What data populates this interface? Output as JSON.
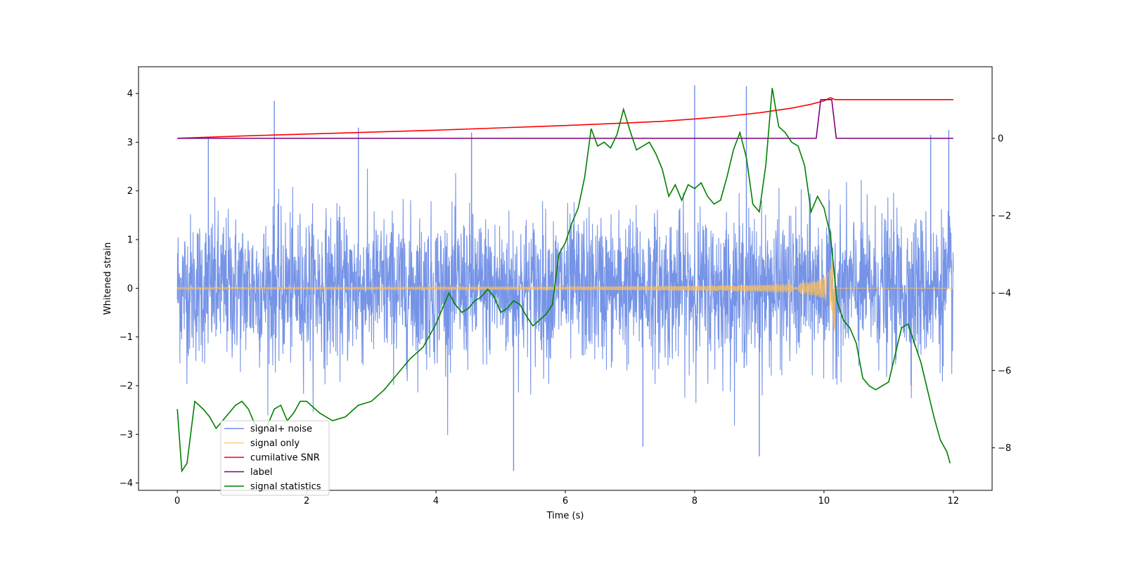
{
  "chart_data": {
    "type": "line",
    "title": "",
    "xlabel": "Time (s)",
    "ylabel": "Whitened strain",
    "xlim": [
      -0.6,
      12.6
    ],
    "ylim": [
      -4.15,
      4.55
    ],
    "y2lim": [
      -9.1,
      1.85
    ],
    "xticks": [
      0,
      2,
      4,
      6,
      8,
      10,
      12
    ],
    "yticks": [
      -4,
      -3,
      -2,
      -1,
      0,
      1,
      2,
      3,
      4
    ],
    "y2ticks": [
      -8,
      -6,
      -4,
      -2,
      0
    ],
    "xtick_labels": [
      "0",
      "2",
      "4",
      "6",
      "8",
      "10",
      "12"
    ],
    "ytick_labels": [
      "−4",
      "−3",
      "−2",
      "−1",
      "0",
      "1",
      "2",
      "3",
      "4"
    ],
    "y2tick_labels": [
      "−8",
      "−6",
      "−4",
      "−2",
      "0"
    ],
    "grid": false,
    "legend": {
      "placement": "lower-left"
    },
    "series": [
      {
        "name": "signal+ noise",
        "axis": "left",
        "color": "#6f8ee6",
        "kind": "noise",
        "t_range": [
          0,
          12
        ],
        "approx_std": 0.75,
        "approx_range": [
          -3.75,
          4.17
        ],
        "spikes": [
          [
            0.48,
            3.1
          ],
          [
            1.5,
            3.85
          ],
          [
            2.8,
            3.3
          ],
          [
            4.55,
            3.2
          ],
          [
            5.2,
            -3.75
          ],
          [
            7.2,
            -3.25
          ],
          [
            8.0,
            4.17
          ],
          [
            8.8,
            4.15
          ],
          [
            9.0,
            -3.45
          ],
          [
            11.65,
            3.15
          ],
          [
            11.93,
            3.25
          ]
        ]
      },
      {
        "name": "signal only",
        "axis": "left",
        "color": "#ffbf5a",
        "kind": "chirp",
        "t_range": [
          0,
          10.17
        ],
        "merger_time": 10.17,
        "peak_amplitude": 0.9
      },
      {
        "name": "cumilative SNR",
        "axis": "right",
        "color": "#ff0000",
        "x": [
          0,
          1,
          2,
          3,
          4,
          5,
          6,
          7,
          7.5,
          8,
          8.5,
          9,
          9.5,
          9.8,
          10.0,
          10.1,
          10.17,
          10.2,
          11,
          12
        ],
        "y": [
          0.0,
          0.06,
          0.11,
          0.16,
          0.21,
          0.27,
          0.33,
          0.4,
          0.44,
          0.5,
          0.57,
          0.66,
          0.78,
          0.88,
          0.97,
          1.05,
          1.0,
          1.0,
          1.0,
          1.0
        ]
      },
      {
        "name": "label",
        "axis": "right",
        "color": "#800080",
        "x": [
          0,
          9.88,
          9.95,
          10.12,
          10.19,
          12
        ],
        "y": [
          0,
          0,
          1,
          1,
          0,
          0
        ]
      },
      {
        "name": "signal statistics",
        "axis": "right",
        "color": "#008000",
        "x": [
          0,
          0.07,
          0.15,
          0.27,
          0.4,
          0.5,
          0.6,
          0.7,
          0.8,
          0.9,
          1.0,
          1.1,
          1.2,
          1.3,
          1.4,
          1.5,
          1.6,
          1.7,
          1.8,
          1.9,
          2.0,
          2.2,
          2.4,
          2.6,
          2.8,
          3.0,
          3.2,
          3.4,
          3.6,
          3.8,
          4.0,
          4.1,
          4.2,
          4.3,
          4.4,
          4.5,
          4.6,
          4.7,
          4.8,
          4.9,
          5.0,
          5.1,
          5.2,
          5.3,
          5.4,
          5.5,
          5.6,
          5.7,
          5.8,
          5.9,
          6.0,
          6.1,
          6.2,
          6.3,
          6.4,
          6.5,
          6.6,
          6.7,
          6.8,
          6.9,
          7.0,
          7.1,
          7.2,
          7.3,
          7.4,
          7.5,
          7.6,
          7.7,
          7.8,
          7.9,
          8.0,
          8.1,
          8.2,
          8.3,
          8.4,
          8.5,
          8.6,
          8.7,
          8.8,
          8.9,
          9.0,
          9.1,
          9.2,
          9.3,
          9.4,
          9.5,
          9.6,
          9.7,
          9.8,
          9.9,
          10.0,
          10.1,
          10.2,
          10.3,
          10.4,
          10.5,
          10.6,
          10.7,
          10.8,
          10.9,
          11.0,
          11.1,
          11.2,
          11.3,
          11.4,
          11.5,
          11.6,
          11.7,
          11.8,
          11.9,
          11.95
        ],
        "y": [
          -7.0,
          -8.6,
          -8.4,
          -6.8,
          -7.0,
          -7.2,
          -7.5,
          -7.3,
          -7.1,
          -6.9,
          -6.8,
          -7.0,
          -7.4,
          -7.6,
          -7.4,
          -7.0,
          -6.9,
          -7.3,
          -7.1,
          -6.8,
          -6.8,
          -7.1,
          -7.3,
          -7.2,
          -6.9,
          -6.8,
          -6.5,
          -6.1,
          -5.7,
          -5.4,
          -4.8,
          -4.4,
          -4.0,
          -4.3,
          -4.5,
          -4.4,
          -4.2,
          -4.1,
          -3.9,
          -4.1,
          -4.5,
          -4.4,
          -4.2,
          -4.3,
          -4.6,
          -4.85,
          -4.7,
          -4.55,
          -4.3,
          -3.0,
          -2.7,
          -2.2,
          -1.8,
          -1.0,
          0.25,
          -0.2,
          -0.1,
          -0.25,
          0.1,
          0.75,
          0.2,
          -0.3,
          -0.2,
          -0.1,
          -0.4,
          -0.8,
          -1.5,
          -1.2,
          -1.6,
          -1.2,
          -1.3,
          -1.15,
          -1.5,
          -1.7,
          -1.6,
          -1.0,
          -0.3,
          0.15,
          -0.5,
          -1.7,
          -1.9,
          -0.7,
          1.3,
          0.3,
          0.15,
          -0.1,
          -0.2,
          -0.7,
          -1.9,
          -1.5,
          -1.8,
          -2.5,
          -4.2,
          -4.7,
          -4.9,
          -5.3,
          -6.2,
          -6.4,
          -6.5,
          -6.4,
          -6.3,
          -5.6,
          -4.9,
          -4.8,
          -5.3,
          -5.8,
          -6.5,
          -7.2,
          -7.8,
          -8.1,
          -8.4
        ]
      }
    ]
  }
}
